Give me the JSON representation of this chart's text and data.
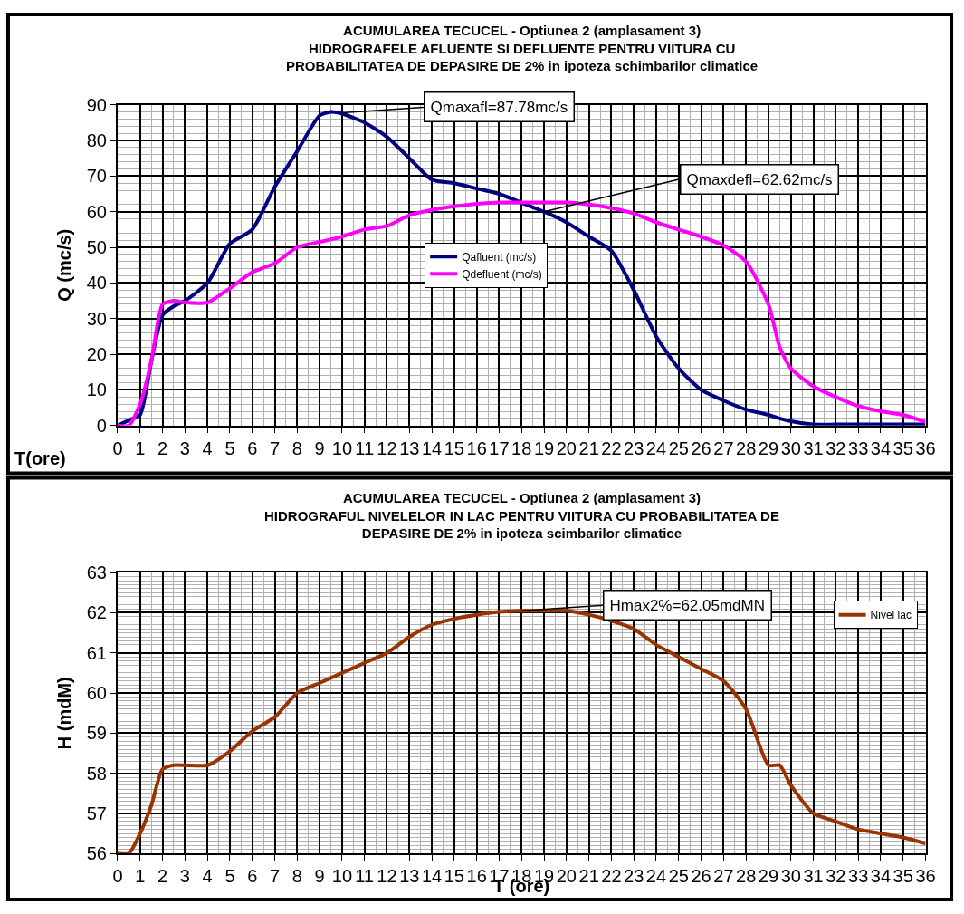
{
  "chart_data": [
    {
      "type": "line",
      "title": "ACUMULAREA TECUCEL - Optiunea 2 (amplasament 3)\nHIDROGRAFELE AFLUENTE SI DEFLUENTE PENTRU VIITURA CU\nPROBABILITATEA DE DEPASIRE DE 2% in ipoteza schimbarilor climatice",
      "xlabel": "T(ore)",
      "ylabel": "Q (mc/s)",
      "x": [
        0,
        0.5,
        1,
        1.5,
        2,
        2.5,
        3,
        4,
        5,
        6,
        7,
        8,
        9,
        9.5,
        10,
        11,
        12,
        13,
        14,
        15,
        16,
        17,
        18,
        19,
        20,
        21,
        22,
        23,
        24,
        25,
        26,
        27,
        28,
        29,
        29.5,
        30,
        31,
        32,
        33,
        34,
        35,
        36
      ],
      "series": [
        {
          "name": "Qafluent (mc/s)",
          "color": "#000080",
          "values": [
            0,
            1.5,
            3,
            18,
            31,
            33.5,
            35,
            40,
            51,
            55,
            67,
            77,
            87,
            88,
            87.5,
            85,
            81,
            75,
            69,
            68,
            66.5,
            65,
            62.5,
            60,
            57,
            53,
            49,
            38,
            25,
            16,
            10,
            7,
            4.5,
            3,
            2,
            1.2,
            0.3,
            0.3,
            0.3,
            0.3,
            0.3,
            0.3
          ]
        },
        {
          "name": "Qdefluent (mc/s)",
          "color": "#ff00ff",
          "values": [
            0,
            0,
            6,
            18,
            34,
            35,
            34.5,
            34.5,
            38.5,
            43,
            45.5,
            50,
            51.5,
            52.2,
            53,
            55,
            56,
            59,
            60.5,
            61.5,
            62.2,
            62.6,
            62.6,
            62.6,
            62.6,
            62,
            61,
            59.5,
            57,
            55,
            53,
            50.5,
            46,
            34,
            22,
            16,
            11,
            8,
            5.5,
            4,
            3,
            1
          ]
        }
      ],
      "xlim": [
        0,
        36
      ],
      "xticks": [
        0,
        1,
        2,
        3,
        4,
        5,
        6,
        7,
        8,
        9,
        10,
        11,
        12,
        13,
        14,
        15,
        16,
        17,
        18,
        19,
        20,
        21,
        22,
        23,
        24,
        25,
        26,
        27,
        28,
        29,
        30,
        31,
        32,
        33,
        34,
        35,
        36
      ],
      "ylim": [
        0,
        90
      ],
      "yticks": [
        0,
        10,
        20,
        30,
        40,
        50,
        60,
        70,
        80,
        90
      ],
      "annotations": [
        {
          "text": "Qmaxafl=87.78mc/s",
          "x": 10,
          "y": 87.78
        },
        {
          "text": "Qmaxdefl=62.62mc/s",
          "x": 19,
          "y": 60
        }
      ],
      "grid": true,
      "legend": "center",
      "marker": "none",
      "line_style": "solid"
    },
    {
      "type": "line",
      "title": "ACUMULAREA TECUCEL - Optiunea 2 (amplasament 3)\nHIDROGRAFUL NIVELELOR IN LAC PENTRU VIITURA CU PROBABILITATEA DE\nDEPASIRE DE 2% in ipoteza scimbarilor climatice",
      "xlabel": "T (ore)",
      "ylabel": "H (mdM)",
      "x": [
        0,
        0.5,
        1,
        1.5,
        2,
        2.5,
        3,
        4,
        5,
        6,
        7,
        8,
        9,
        10,
        11,
        12,
        13,
        14,
        15,
        16,
        17,
        18,
        19,
        20,
        21,
        22,
        23,
        24,
        25,
        26,
        27,
        28,
        29,
        29.5,
        30,
        31,
        32,
        33,
        34,
        35,
        36
      ],
      "series": [
        {
          "name": "Nivel lac",
          "color": "#993300",
          "values": [
            56,
            56,
            56.5,
            57.2,
            58.1,
            58.2,
            58.2,
            58.2,
            58.55,
            59.05,
            59.4,
            60,
            60.25,
            60.5,
            60.75,
            61,
            61.4,
            61.7,
            61.85,
            61.95,
            62.02,
            62.05,
            62.05,
            62.05,
            61.95,
            61.8,
            61.6,
            61.2,
            60.9,
            60.6,
            60.3,
            59.6,
            58.2,
            58.2,
            57.7,
            57,
            56.8,
            56.6,
            56.5,
            56.4,
            56.25
          ]
        }
      ],
      "xlim": [
        0,
        36
      ],
      "xticks": [
        0,
        1,
        2,
        3,
        4,
        5,
        6,
        7,
        8,
        9,
        10,
        11,
        12,
        13,
        14,
        15,
        16,
        17,
        18,
        19,
        20,
        21,
        22,
        23,
        24,
        25,
        26,
        27,
        28,
        29,
        30,
        31,
        32,
        33,
        34,
        35,
        36
      ],
      "ylim": [
        56,
        63
      ],
      "yticks": [
        56,
        57,
        58,
        59,
        60,
        61,
        62,
        63
      ],
      "annotations": [
        {
          "text": "Hmax2%=62.05mdMN",
          "x": 18,
          "y": 62.05
        }
      ],
      "grid": true,
      "legend": "top right",
      "marker": "none",
      "line_style": "solid"
    }
  ]
}
